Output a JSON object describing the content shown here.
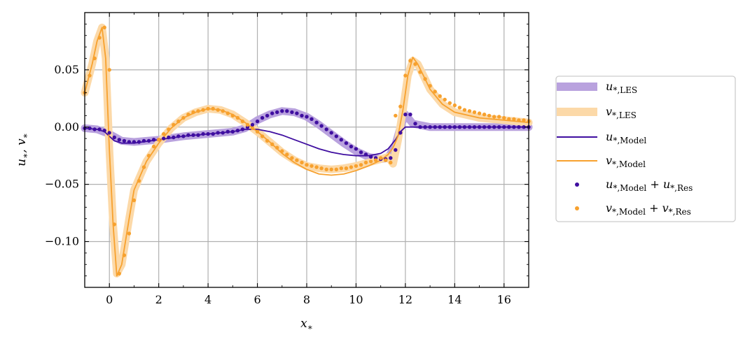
{
  "chart_data": {
    "type": "line",
    "title": "",
    "xlabel": "x*",
    "ylabel": "u*, v*",
    "xlim": [
      -1,
      17
    ],
    "ylim": [
      -0.14,
      0.1
    ],
    "xticks": [
      0,
      2,
      4,
      6,
      8,
      10,
      12,
      14,
      16
    ],
    "xtick_labels": [
      "0",
      "2",
      "4",
      "6",
      "8",
      "10",
      "12",
      "14",
      "16"
    ],
    "yticks": [
      0.05,
      0.0,
      -0.05,
      -0.1
    ],
    "ytick_labels": [
      "0.05",
      "0.00",
      "−0.05",
      "−0.10"
    ],
    "grid": true,
    "legend_position": "outside-right",
    "colors": {
      "purple": "#3f0ea0",
      "orange": "#f7a12e",
      "purple_band": "#b9a2de",
      "orange_band": "#fcd9a8"
    },
    "legend": [
      {
        "base": "u",
        "sub": "*,LES",
        "style": "band",
        "color": "#b9a2de"
      },
      {
        "base": "v",
        "sub": "*,LES",
        "style": "band",
        "color": "#fcd9a8"
      },
      {
        "base": "u",
        "sub": "*,Model",
        "style": "line",
        "color": "#3f0ea0"
      },
      {
        "base": "v",
        "sub": "*,Model",
        "style": "line",
        "color": "#f7a12e"
      },
      {
        "base": "u",
        "sub": "*,Model",
        "base2": "u",
        "sub2": "*,Res",
        "style": "dot",
        "color": "#3f0ea0"
      },
      {
        "base": "v",
        "sub": "*,Model",
        "base2": "v",
        "sub2": "*,Res",
        "style": "dot",
        "color": "#f7a12e"
      }
    ],
    "series": [
      {
        "name": "u*,LES",
        "kind": "band",
        "color": "#b9a2de",
        "x": [
          -1,
          -0.5,
          0,
          0.5,
          1,
          2,
          3,
          4,
          5,
          5.5,
          6,
          6.5,
          7,
          7.5,
          8,
          8.5,
          9,
          9.5,
          10,
          10.5,
          11,
          11.3,
          11.6,
          11.8,
          12,
          12.3,
          13,
          14,
          15,
          16,
          17
        ],
        "y": [
          -0.001,
          -0.002,
          -0.006,
          -0.012,
          -0.013,
          -0.011,
          -0.008,
          -0.006,
          -0.004,
          -0.001,
          0.006,
          0.011,
          0.014,
          0.013,
          0.009,
          0.002,
          -0.006,
          -0.014,
          -0.021,
          -0.026,
          -0.028,
          -0.027,
          -0.015,
          0.0,
          0.011,
          0.003,
          0.0,
          0.0,
          0.0,
          0.0,
          0.0
        ]
      },
      {
        "name": "v*,LES",
        "kind": "band",
        "color": "#fcd9a8",
        "x": [
          -1,
          -0.7,
          -0.5,
          -0.3,
          -0.15,
          0,
          0.15,
          0.3,
          0.5,
          0.8,
          1,
          1.5,
          2,
          2.5,
          3,
          3.5,
          4,
          4.5,
          5,
          5.5,
          6,
          6.5,
          7,
          7.5,
          8,
          8.5,
          9,
          9.5,
          10,
          10.5,
          11,
          11.3,
          11.5,
          11.7,
          11.9,
          12.1,
          12.3,
          12.5,
          12.8,
          13,
          13.5,
          14,
          15,
          16,
          17
        ],
        "y": [
          0.03,
          0.055,
          0.075,
          0.087,
          0.06,
          -0.02,
          -0.085,
          -0.128,
          -0.12,
          -0.08,
          -0.055,
          -0.03,
          -0.014,
          -0.001,
          0.008,
          0.013,
          0.016,
          0.015,
          0.011,
          0.004,
          -0.004,
          -0.013,
          -0.022,
          -0.029,
          -0.034,
          -0.036,
          -0.037,
          -0.036,
          -0.034,
          -0.031,
          -0.028,
          -0.026,
          -0.032,
          -0.012,
          0.015,
          0.045,
          0.058,
          0.055,
          0.042,
          0.033,
          0.02,
          0.013,
          0.008,
          0.006,
          0.004
        ]
      },
      {
        "name": "u*,Model",
        "kind": "line",
        "color": "#3f0ea0",
        "x": [
          -1,
          -0.5,
          -0.2,
          0,
          0.2,
          0.5,
          1,
          2,
          3,
          4,
          5,
          5.5,
          6,
          6.5,
          7,
          7.5,
          8,
          8.5,
          9,
          9.5,
          10,
          10.5,
          11,
          11.3,
          11.6,
          11.8,
          12,
          12.5,
          13,
          14,
          15,
          16,
          17
        ],
        "y": [
          -0.001,
          -0.002,
          -0.004,
          -0.008,
          -0.012,
          -0.014,
          -0.014,
          -0.011,
          -0.008,
          -0.006,
          -0.004,
          -0.002,
          -0.002,
          -0.004,
          -0.007,
          -0.011,
          -0.015,
          -0.019,
          -0.022,
          -0.024,
          -0.025,
          -0.025,
          -0.023,
          -0.019,
          -0.011,
          -0.004,
          0.0,
          0.0,
          0.0,
          0.0,
          0.0,
          0.0,
          0.0
        ]
      },
      {
        "name": "v*,Model",
        "kind": "line",
        "color": "#f7a12e",
        "x": [
          -1,
          -0.7,
          -0.5,
          -0.3,
          -0.15,
          0,
          0.15,
          0.3,
          0.5,
          0.8,
          1,
          1.5,
          2,
          2.5,
          3,
          3.5,
          4,
          4.5,
          5,
          5.5,
          6,
          6.5,
          7,
          7.5,
          8,
          8.5,
          9,
          9.5,
          10,
          10.5,
          11,
          11.3,
          11.5,
          11.7,
          11.9,
          12.1,
          12.3,
          12.5,
          12.8,
          13,
          13.5,
          14,
          15,
          16,
          17
        ],
        "y": [
          0.03,
          0.055,
          0.075,
          0.087,
          0.06,
          -0.02,
          -0.085,
          -0.13,
          -0.12,
          -0.08,
          -0.055,
          -0.03,
          -0.014,
          -0.001,
          0.008,
          0.013,
          0.016,
          0.015,
          0.011,
          0.004,
          -0.004,
          -0.013,
          -0.023,
          -0.031,
          -0.037,
          -0.041,
          -0.042,
          -0.041,
          -0.038,
          -0.034,
          -0.029,
          -0.024,
          -0.018,
          -0.008,
          0.015,
          0.045,
          0.061,
          0.055,
          0.042,
          0.033,
          0.02,
          0.013,
          0.008,
          0.006,
          0.004
        ]
      },
      {
        "name": "u*,Model + u*,Res",
        "kind": "dots",
        "color": "#3f0ea0",
        "x": [
          -1,
          -0.8,
          -0.6,
          -0.4,
          -0.2,
          0,
          0.2,
          0.4,
          0.6,
          0.8,
          1,
          1.2,
          1.4,
          1.6,
          1.8,
          2,
          2.2,
          2.4,
          2.6,
          2.8,
          3,
          3.2,
          3.4,
          3.6,
          3.8,
          4,
          4.2,
          4.4,
          4.6,
          4.8,
          5,
          5.2,
          5.4,
          5.6,
          5.8,
          6,
          6.2,
          6.4,
          6.6,
          6.8,
          7,
          7.2,
          7.4,
          7.6,
          7.8,
          8,
          8.2,
          8.4,
          8.6,
          8.8,
          9,
          9.2,
          9.4,
          9.6,
          9.8,
          10,
          10.2,
          10.4,
          10.6,
          10.8,
          11,
          11.2,
          11.4,
          11.6,
          11.8,
          12,
          12.2,
          12.4,
          12.6,
          12.8,
          13,
          13.2,
          13.4,
          13.6,
          13.8,
          14,
          14.2,
          14.4,
          14.6,
          14.8,
          15,
          15.2,
          15.4,
          15.6,
          15.8,
          16,
          16.2,
          16.4,
          16.6,
          16.8,
          17
        ],
        "y": [
          -0.001,
          -0.001,
          -0.002,
          -0.002,
          -0.003,
          -0.005,
          -0.009,
          -0.011,
          -0.012,
          -0.013,
          -0.013,
          -0.013,
          -0.012,
          -0.012,
          -0.011,
          -0.011,
          -0.01,
          -0.009,
          -0.009,
          -0.008,
          -0.008,
          -0.007,
          -0.007,
          -0.007,
          -0.006,
          -0.006,
          -0.006,
          -0.005,
          -0.005,
          -0.004,
          -0.004,
          -0.003,
          -0.002,
          0.0,
          0.002,
          0.005,
          0.008,
          0.01,
          0.012,
          0.013,
          0.014,
          0.014,
          0.013,
          0.012,
          0.01,
          0.009,
          0.007,
          0.004,
          0.001,
          -0.002,
          -0.005,
          -0.008,
          -0.011,
          -0.014,
          -0.017,
          -0.019,
          -0.022,
          -0.024,
          -0.026,
          -0.027,
          -0.028,
          -0.028,
          -0.027,
          -0.02,
          -0.005,
          0.011,
          0.011,
          0.003,
          0.0,
          0.0,
          0.0,
          0.0,
          0.0,
          0.0,
          0.0,
          0.0,
          0.0,
          0.0,
          0.0,
          0.0,
          0.0,
          0.0,
          0.0,
          0.0,
          0.0,
          0.0,
          0.0,
          0.0,
          0.0,
          0.0,
          0.0
        ]
      },
      {
        "name": "v*,Model + v*,Res",
        "kind": "dots",
        "color": "#f7a12e",
        "x": [
          -1,
          -0.8,
          -0.6,
          -0.4,
          -0.2,
          0,
          0.2,
          0.4,
          0.6,
          0.8,
          1,
          1.2,
          1.4,
          1.6,
          1.8,
          2,
          2.2,
          2.4,
          2.6,
          2.8,
          3,
          3.2,
          3.4,
          3.6,
          3.8,
          4,
          4.2,
          4.4,
          4.6,
          4.8,
          5,
          5.2,
          5.4,
          5.6,
          5.8,
          6,
          6.2,
          6.4,
          6.6,
          6.8,
          7,
          7.2,
          7.4,
          7.6,
          7.8,
          8,
          8.2,
          8.4,
          8.6,
          8.8,
          9,
          9.2,
          9.4,
          9.6,
          9.8,
          10,
          10.2,
          10.4,
          10.6,
          10.8,
          11,
          11.2,
          11.4,
          11.6,
          11.8,
          12,
          12.2,
          12.4,
          12.6,
          12.8,
          13,
          13.2,
          13.4,
          13.6,
          13.8,
          14,
          14.2,
          14.4,
          14.6,
          14.8,
          15,
          15.2,
          15.4,
          15.6,
          15.8,
          16,
          16.2,
          16.4,
          16.6,
          16.8,
          17
        ],
        "y": [
          0.03,
          0.045,
          0.06,
          0.078,
          0.087,
          0.05,
          -0.085,
          -0.128,
          -0.112,
          -0.093,
          -0.064,
          -0.047,
          -0.035,
          -0.025,
          -0.017,
          -0.011,
          -0.006,
          -0.002,
          0.002,
          0.005,
          0.008,
          0.011,
          0.013,
          0.014,
          0.015,
          0.016,
          0.016,
          0.015,
          0.014,
          0.012,
          0.01,
          0.008,
          0.005,
          0.002,
          -0.001,
          -0.004,
          -0.008,
          -0.012,
          -0.015,
          -0.018,
          -0.021,
          -0.024,
          -0.027,
          -0.029,
          -0.031,
          -0.033,
          -0.034,
          -0.035,
          -0.036,
          -0.037,
          -0.037,
          -0.037,
          -0.036,
          -0.036,
          -0.035,
          -0.034,
          -0.033,
          -0.031,
          -0.03,
          -0.029,
          -0.027,
          -0.029,
          -0.031,
          0.01,
          0.018,
          0.045,
          0.058,
          0.055,
          0.048,
          0.042,
          0.036,
          0.031,
          0.027,
          0.024,
          0.021,
          0.019,
          0.017,
          0.015,
          0.014,
          0.013,
          0.012,
          0.011,
          0.01,
          0.009,
          0.009,
          0.008,
          0.007,
          0.007,
          0.006,
          0.006,
          0.005
        ]
      }
    ]
  }
}
